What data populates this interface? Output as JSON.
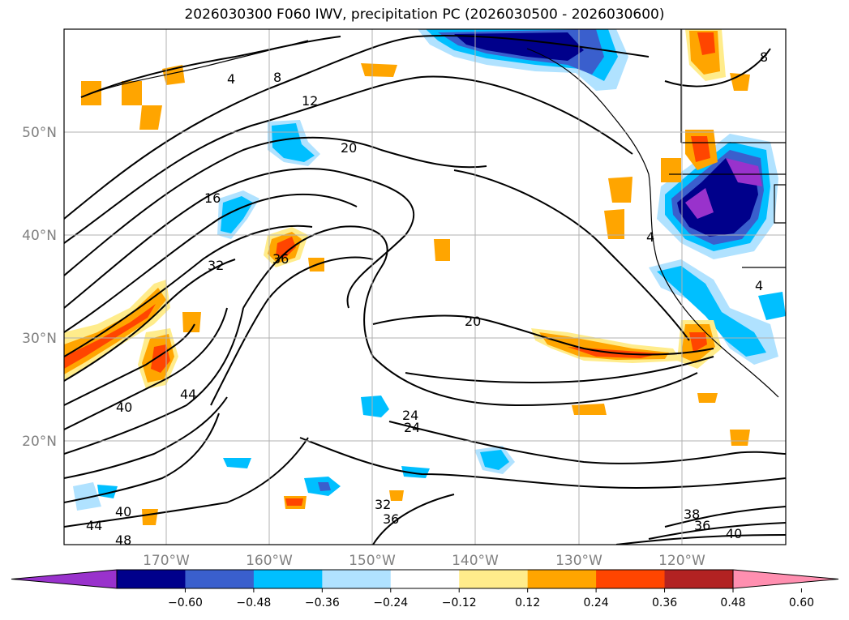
{
  "title": "2026030300 F060 IWV, precipitation PC (2026030500 - 2026030600)",
  "lat_labels": [
    "50°N",
    "40°N",
    "30°N",
    "20°N"
  ],
  "lon_labels": [
    "170°W",
    "160°W",
    "150°W",
    "140°W",
    "130°W",
    "120°W"
  ],
  "contour_labels": [
    "4",
    "8",
    "12",
    "20",
    "16",
    "32",
    "36",
    "40",
    "44",
    "20",
    "24",
    "24",
    "4",
    "4",
    "8",
    "40",
    "44",
    "48",
    "32",
    "36",
    "38",
    "36",
    "40"
  ],
  "colorbar": {
    "ticks": [
      "−0.60",
      "−0.48",
      "−0.36",
      "−0.24",
      "−0.12",
      "0.12",
      "0.24",
      "0.36",
      "0.48",
      "0.60"
    ],
    "colors": [
      "#9932cc",
      "#00008b",
      "#3a5fcd",
      "#00bfff",
      "#b0e2ff",
      "#ffffff",
      "#ffec8b",
      "#ffa500",
      "#ff4500",
      "#b22222",
      "#ff8fb0"
    ]
  }
}
